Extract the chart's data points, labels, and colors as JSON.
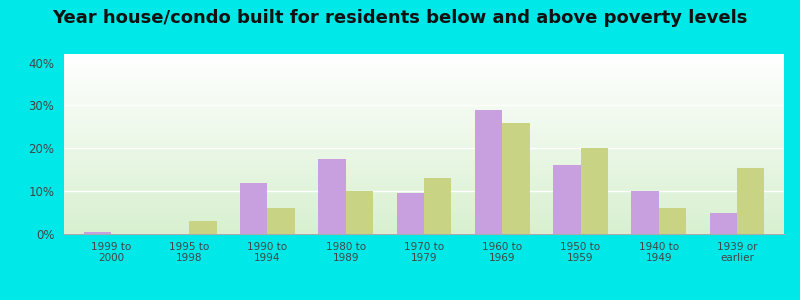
{
  "title": "Year house/condo built for residents below and above poverty levels",
  "categories": [
    "1999 to\n2000",
    "1995 to\n1998",
    "1990 to\n1994",
    "1980 to\n1989",
    "1970 to\n1979",
    "1960 to\n1969",
    "1950 to\n1959",
    "1940 to\n1949",
    "1939 or\nearlier"
  ],
  "below_poverty": [
    0.5,
    0.0,
    12.0,
    17.5,
    9.5,
    29.0,
    16.0,
    10.0,
    5.0
  ],
  "above_poverty": [
    0.0,
    3.0,
    6.0,
    10.0,
    13.0,
    26.0,
    20.0,
    6.0,
    15.5
  ],
  "below_color": "#c8a0e0",
  "above_color": "#c8d484",
  "background_outer": "#00e8e8",
  "ylim": [
    0,
    42
  ],
  "yticks": [
    0,
    10,
    20,
    30,
    40
  ],
  "ytick_labels": [
    "0%",
    "10%",
    "20%",
    "30%",
    "40%"
  ],
  "title_fontsize": 13,
  "bar_width": 0.35
}
